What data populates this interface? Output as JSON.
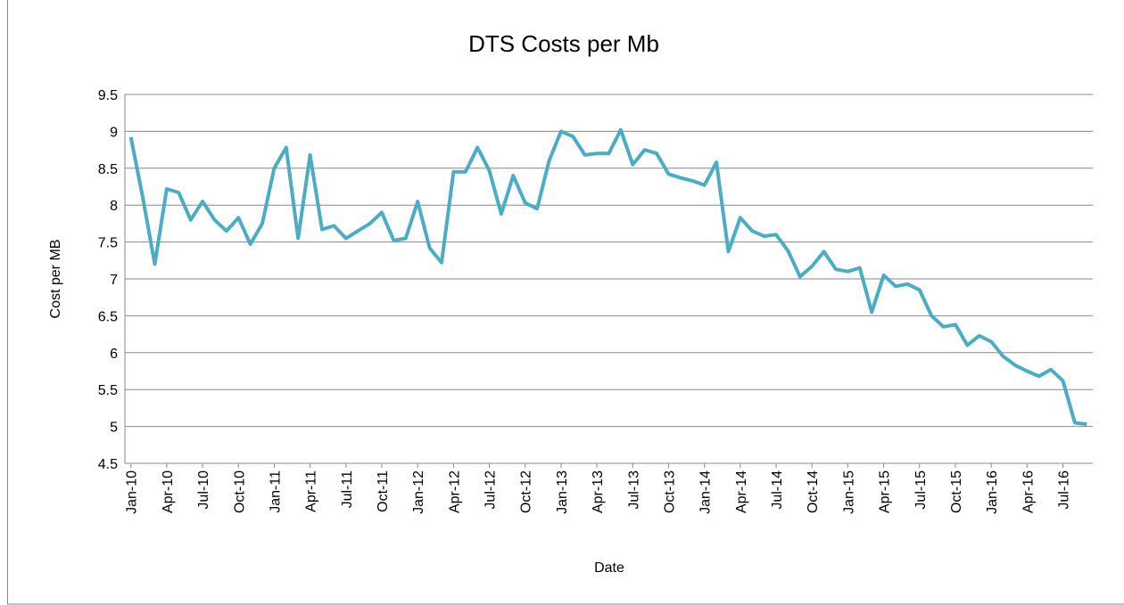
{
  "chart_data": {
    "type": "line",
    "title": "DTS Costs per Mb",
    "x_label": "Date",
    "y_label": "Cost per MB",
    "categories": [
      "Jan-10",
      null,
      null,
      "Apr-10",
      null,
      null,
      "Jul-10",
      null,
      null,
      "Oct-10",
      null,
      null,
      "Jan-11",
      null,
      null,
      "Apr-11",
      null,
      null,
      "Jul-11",
      null,
      null,
      "Oct-11",
      null,
      null,
      "Jan-12",
      null,
      null,
      "Apr-12",
      null,
      null,
      "Jul-12",
      null,
      null,
      "Oct-12",
      null,
      null,
      "Jan-13",
      null,
      null,
      "Apr-13",
      null,
      null,
      "Jul-13",
      null,
      null,
      "Oct-13",
      null,
      null,
      "Jan-14",
      null,
      null,
      "Apr-14",
      null,
      null,
      "Jul-14",
      null,
      null,
      "Oct-14",
      null,
      null,
      "Jan-15",
      null,
      null,
      "Apr-15",
      null,
      null,
      "Jul-15",
      null,
      null,
      "Oct-15",
      null,
      null,
      "Jan-16",
      null,
      null,
      "Apr-16",
      null,
      null,
      "Jul-16",
      null,
      null
    ],
    "series": [
      {
        "color": "#4bacc6",
        "values": [
          8.92,
          8.1,
          7.2,
          8.22,
          8.17,
          7.8,
          8.05,
          7.8,
          7.65,
          7.83,
          7.47,
          7.75,
          8.5,
          8.78,
          7.55,
          8.68,
          7.67,
          7.72,
          7.55,
          7.65,
          7.75,
          7.9,
          7.52,
          7.55,
          8.05,
          7.42,
          7.22,
          8.45,
          8.45,
          8.78,
          8.47,
          7.88,
          8.4,
          8.03,
          7.95,
          8.6,
          9.0,
          8.93,
          8.68,
          8.7,
          8.7,
          9.02,
          8.55,
          8.75,
          8.7,
          8.42,
          8.37,
          8.33,
          8.27,
          8.58,
          7.37,
          7.83,
          7.65,
          7.58,
          7.6,
          7.38,
          7.03,
          7.17,
          7.37,
          7.13,
          7.1,
          7.15,
          6.55,
          7.05,
          6.9,
          6.93,
          6.85,
          6.5,
          6.35,
          6.38,
          6.1,
          6.23,
          6.15,
          5.95,
          5.83,
          5.75,
          5.68,
          5.77,
          5.62,
          5.05,
          5.03
        ]
      }
    ],
    "ylim": [
      4.5,
      9.5
    ],
    "yticks": [
      4.5,
      5,
      5.5,
      6,
      6.5,
      7,
      7.5,
      8,
      8.5,
      9,
      9.5
    ],
    "grid": true
  }
}
